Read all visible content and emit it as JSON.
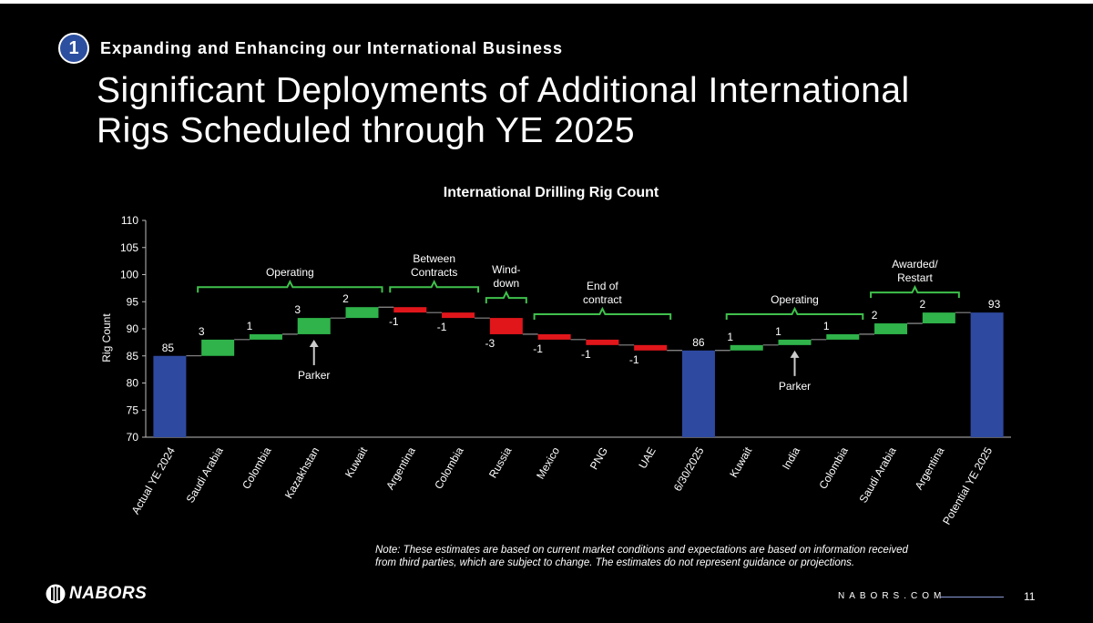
{
  "header": {
    "section_number": "1",
    "section_label": "Expanding and Enhancing our International Business",
    "title_line1": "Significant Deployments of Additional International",
    "title_line2": "Rigs Scheduled through YE 2025"
  },
  "chart_data": {
    "type": "waterfall",
    "title": "International Drilling Rig Count",
    "ylabel": "Rig Count",
    "ylim": [
      70,
      110
    ],
    "yticks": [
      70,
      75,
      80,
      85,
      90,
      95,
      100,
      105,
      110
    ],
    "categories": [
      "Actual YE 2024",
      "Saudi Arabia",
      "Colombia",
      "Kazakhstan",
      "Kuwait",
      "Argentina",
      "Colombia",
      "Russia",
      "Mexico",
      "PNG",
      "UAE",
      "6/30/2025",
      "Kuwait",
      "India",
      "Colombia",
      "Saudi Arabia",
      "Argentina",
      "Potential YE 2025"
    ],
    "values": [
      85,
      3,
      1,
      3,
      2,
      -1,
      -1,
      -3,
      -1,
      -1,
      -1,
      86,
      1,
      1,
      1,
      2,
      2,
      93
    ],
    "labels": [
      "85",
      "3",
      "1",
      "3",
      "2",
      "-1",
      "-1",
      "-3",
      "-1",
      "-1",
      "-1",
      "86",
      "1",
      "1",
      "1",
      "2",
      "2",
      "93"
    ],
    "kinds": [
      "total",
      "up",
      "up",
      "up",
      "up",
      "down",
      "down",
      "down",
      "down",
      "down",
      "down",
      "total",
      "up",
      "up",
      "up",
      "up",
      "up",
      "total"
    ],
    "colors": {
      "total": "#2e4aa0",
      "up": "#2fb34a",
      "down": "#e0161b",
      "bracket": "#3fc14c",
      "connector": "#cccccc"
    },
    "groups": [
      {
        "text": [
          "Operating"
        ],
        "from": 1,
        "to": 4
      },
      {
        "text": [
          "Between",
          "Contracts"
        ],
        "from": 5,
        "to": 6
      },
      {
        "text": [
          "Wind-",
          "down"
        ],
        "from": 7,
        "to": 7
      },
      {
        "text": [
          "End of",
          "contract"
        ],
        "from": 8,
        "to": 10
      },
      {
        "text": [
          "Operating"
        ],
        "from": 12,
        "to": 14
      },
      {
        "text": [
          "Awarded/",
          "Restart"
        ],
        "from": 15,
        "to": 16
      }
    ],
    "annotations": [
      {
        "text": "Parker",
        "index": 3
      },
      {
        "text": "Parker",
        "index": 13
      }
    ]
  },
  "footer": {
    "note_line1": "Note: These estimates are based on current market conditions and expectations are based on information received",
    "note_line2": "from third parties, which are subject to change. The estimates do not represent guidance or projections.",
    "logo_text": "NABORS",
    "website": "NABORS.COM",
    "page_number": "11"
  }
}
